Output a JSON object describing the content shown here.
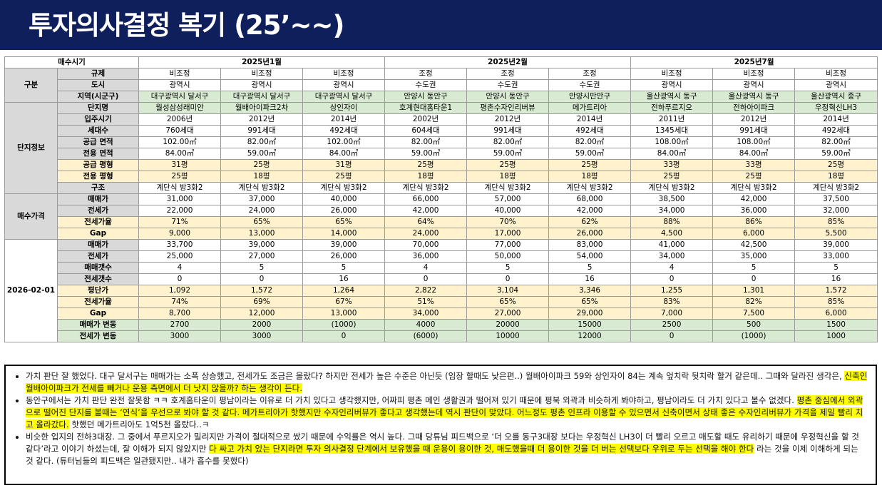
{
  "title": "투자의사결정 복기 (25’~~)",
  "table": {
    "col_head_label": "매수시기",
    "periods": [
      "2025년1월",
      "2025년2월",
      "2025년7월"
    ],
    "sections": {
      "gubun": "구분",
      "danji": "단지정보",
      "price": "매수가격",
      "current": "2026-02-01"
    },
    "rows": [
      {
        "label": "규제",
        "cells": [
          "비조정",
          "비조정",
          "비조정",
          "조정",
          "조정",
          "조정",
          "비조정",
          "비조정",
          "비조정"
        ]
      },
      {
        "label": "도시",
        "cells": [
          "광역시",
          "광역시",
          "광역시",
          "수도권",
          "수도권",
          "수도권",
          "광역시",
          "광역시",
          "광역시"
        ]
      },
      {
        "label": "지역(시군구)",
        "cells": [
          "대구광역시 달서구",
          "대구광역시 달서구",
          "대구광역시 달서구",
          "안양시 동안구",
          "안양시 동안구",
          "안양시만안구",
          "울산광역시 동구",
          "울산광역시 동구",
          "울산광역시 중구"
        ]
      },
      {
        "label": "단지명",
        "cells": [
          "월성삼성래미안",
          "월배아이파크2차",
          "상인자이",
          "호계현대홈타운1",
          "평촌수자인리버뷰",
          "메가트리아",
          "전하푸르지오",
          "전하아이파크",
          "우정혁신LH3"
        ]
      },
      {
        "label": "입주시기",
        "cells": [
          "2006년",
          "2012년",
          "2014년",
          "2002년",
          "2012년",
          "2014년",
          "2011년",
          "2012년",
          "2014년"
        ]
      },
      {
        "label": "세대수",
        "cells": [
          "760세대",
          "991세대",
          "492세대",
          "604세대",
          "991세대",
          "492세대",
          "1345세대",
          "991세대",
          "492세대"
        ]
      },
      {
        "label": "공급 면적",
        "cells": [
          "102.00㎡",
          "82.00㎡",
          "102.00㎡",
          "82.00㎡",
          "82.00㎡",
          "82.00㎡",
          "108.00㎡",
          "108.00㎡",
          "82.00㎡"
        ]
      },
      {
        "label": "전용 면적",
        "cells": [
          "84.00㎡",
          "59.00㎡",
          "84.00㎡",
          "59.00㎡",
          "59.00㎡",
          "59.00㎡",
          "84.00㎡",
          "84.00㎡",
          "59.00㎡"
        ]
      },
      {
        "label": "공급 평형",
        "cells": [
          "31평",
          "25평",
          "31평",
          "25평",
          "25평",
          "25평",
          "33평",
          "33평",
          "25평"
        ]
      },
      {
        "label": "전용 평형",
        "cells": [
          "25평",
          "18평",
          "25평",
          "18평",
          "18평",
          "18평",
          "25평",
          "25평",
          "18평"
        ]
      },
      {
        "label": "구조",
        "cells": [
          "계단식 방3화2",
          "계단식 방3화2",
          "계단식 방3화2",
          "계단식 방3화2",
          "계단식 방3화2",
          "계단식 방3화2",
          "계단식 방3화2",
          "계단식 방3화2",
          "계단식 방3화2"
        ]
      },
      {
        "label": "매매가",
        "cells": [
          "31,000",
          "37,000",
          "40,000",
          "66,000",
          "57,000",
          "68,000",
          "38,500",
          "42,000",
          "37,500"
        ]
      },
      {
        "label": "전세가",
        "cells": [
          "22,000",
          "24,000",
          "26,000",
          "42,000",
          "40,000",
          "42,000",
          "34,000",
          "36,000",
          "32,000"
        ]
      },
      {
        "label": "전세가율",
        "cells": [
          "71%",
          "65%",
          "65%",
          "64%",
          "70%",
          "62%",
          "88%",
          "86%",
          "85%"
        ]
      },
      {
        "label": "Gap",
        "cells": [
          "9,000",
          "13,000",
          "14,000",
          "24,000",
          "17,000",
          "26,000",
          "4,500",
          "6,000",
          "5,500"
        ]
      },
      {
        "label": "매매가",
        "cells": [
          "33,700",
          "39,000",
          "39,000",
          "70,000",
          "77,000",
          "83,000",
          "41,000",
          "42,500",
          "39,000"
        ]
      },
      {
        "label": "전세가",
        "cells": [
          "25,000",
          "27,000",
          "26,000",
          "36,000",
          "50,000",
          "54,000",
          "34,000",
          "35,000",
          "33,000"
        ]
      },
      {
        "label": "매매갯수",
        "cells": [
          "4",
          "5",
          "5",
          "4",
          "5",
          "5",
          "4",
          "5",
          "5"
        ]
      },
      {
        "label": "전세갯수",
        "cells": [
          "0",
          "0",
          "16",
          "0",
          "0",
          "16",
          "0",
          "0",
          "16"
        ]
      },
      {
        "label": "평단가",
        "cells": [
          "1,092",
          "1,572",
          "1,264",
          "2,822",
          "3,104",
          "3,346",
          "1,255",
          "1,301",
          "1,572"
        ]
      },
      {
        "label": "전세가율",
        "cells": [
          "74%",
          "69%",
          "67%",
          "51%",
          "65%",
          "65%",
          "83%",
          "82%",
          "85%"
        ]
      },
      {
        "label": "Gap",
        "cells": [
          "8,700",
          "12,000",
          "13,000",
          "34,000",
          "27,000",
          "29,000",
          "7,000",
          "7,500",
          "6,000"
        ]
      },
      {
        "label": "매매가 변동",
        "cells": [
          "2700",
          "2000",
          "(1000)",
          "4000",
          "20000",
          "15000",
          "2500",
          "500",
          "1500"
        ]
      },
      {
        "label": "전세가 변동",
        "cells": [
          "3000",
          "3000",
          "0",
          "(6000)",
          "10000",
          "12000",
          "0",
          "(1000)",
          "1000"
        ]
      }
    ]
  },
  "notes": [
    {
      "segments": [
        {
          "text": "가치 판단 잘 했었다. 대구 달서구는 매매가는 소폭 상승했고, 전세가도 조금은 올랐다? 하지만 전세가 높은 수준은 아닌듯 (임장 할때도 낮은편..) 월배아이파크 59와 상인자이 84는 계속 엎치락 뒷치락 할거 같은데.. 그때와 달라진 생각은, ",
          "hl": false
        },
        {
          "text": "신축인 월배아이파크가 전세를 빼거나 운용 측면에서 더 낫지 않을까? 하는 생각이 든다.",
          "hl": true
        }
      ]
    },
    {
      "segments": [
        {
          "text": "동안구에서는 가치 판단 완전 잘못함 ㅋㅋ 호계홈타운이 평남이라는 이유로 더 가치 있다고 생각했지만, 어짜피 평촌 메인 생활권과 떨어져 있기 때문에 평북 외곽과 비슷하게 봐야하고, 평남이라도 더 가치 있다고 볼수 없겠다. ",
          "hl": false
        },
        {
          "text": "평촌 중심에서 외곽으로 떨어진 단지를 볼때는 ‘연식’을 우선으로 봐야 할 것 같다. 메가트리아가 핫했지만 수자인리버뷰가 좋다고 생각했는데 역시 판단이 맞았다. 어느정도 평촌 인프라 이용할 수 있으면서 신축이면서 상태 좋은 수자인리버뷰가 가격을 제일 빨리 치고 올라갔다.",
          "hl": true
        },
        {
          "text": " 핫했던 메가트리아도 1억5천 올랐다..ㅋ",
          "hl": false
        }
      ]
    },
    {
      "segments": [
        {
          "text": "비슷한 입지의 전하3대장. 그 중에서 푸르지오가 밀리지만 가격이 절대적으로 쌌기 때문에 수익률은 역시 높다. 그때 당튜님 피드백으로 ‘더 오를 동구3대장 보다는 우정혁신 LH3이 더 빨리 오르고 매도할 때도 유리하기 때문에 우정혁신을 할 것 같다’라고 이야기 하셨는데, 잘 이해가 되지 않았지만 ",
          "hl": false
        },
        {
          "text": "다 싸고 가치 있는 단지라면 투자 의사결정 단계에서 보유했을 때 운용이 용이한 것, 매도했을때 더 용이한 것을 더 버는 선택보다 우위로 두는 선택을 해야 한다",
          "hl": true
        },
        {
          "text": " 라는 것을 이제 이해하게 되는 것 같다. (튜터님들의 피드백은 일관됐지만.. 내가 흡수를 못했다)",
          "hl": false
        }
      ]
    }
  ]
}
